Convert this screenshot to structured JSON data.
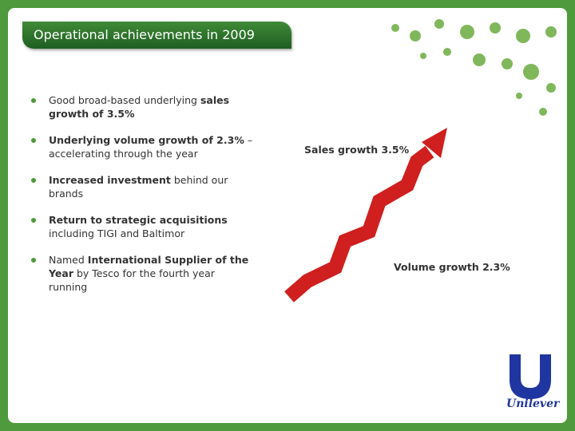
{
  "header": {
    "title": "Operational achievements in 2009"
  },
  "bullets": [
    {
      "runs": [
        {
          "text": "Good broad-based underlying ",
          "bold": false
        },
        {
          "text": "sales growth of 3.5%",
          "bold": true
        }
      ]
    },
    {
      "runs": [
        {
          "text": "Underlying volume growth of 2.3%",
          "bold": true
        },
        {
          "text": " – accelerating through the year",
          "bold": false
        }
      ]
    },
    {
      "runs": [
        {
          "text": "Increased investment",
          "bold": true
        },
        {
          "text": " behind our brands",
          "bold": false
        }
      ]
    },
    {
      "runs": [
        {
          "text": "Return to strategic acquisitions",
          "bold": true
        },
        {
          "text": " including TIGI and Baltimor",
          "bold": false
        }
      ]
    },
    {
      "runs": [
        {
          "text": "Named ",
          "bold": false
        },
        {
          "text": "International Supplier of the Year",
          "bold": true
        },
        {
          "text": " by Tesco for the fourth year running",
          "bold": false
        }
      ]
    }
  ],
  "graphic": {
    "sales_label": "Sales growth 3.5%",
    "volume_label": "Volume growth 2.3%"
  },
  "logo": {
    "text": "Unilever"
  }
}
